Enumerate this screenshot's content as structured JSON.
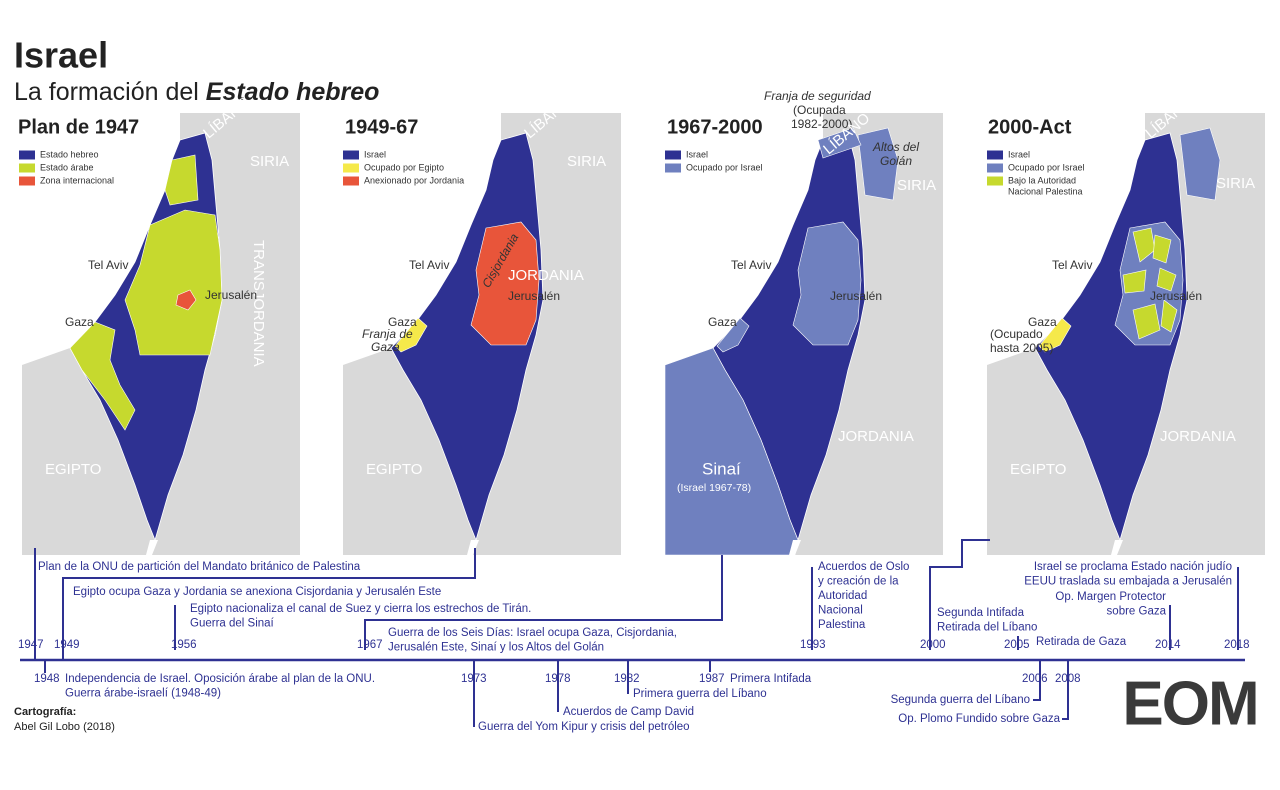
{
  "header": {
    "title": "Israel",
    "subtitle": "La formación del ",
    "subtitle_emphasis": "Estado hebreo"
  },
  "maps": [
    {
      "title": "Plan de 1947",
      "legend": [
        {
          "lines": [
            "Estado hebreo"
          ],
          "color": "#2e3192"
        },
        {
          "lines": [
            "Estado árabe"
          ],
          "color": "#c6d92e"
        },
        {
          "lines": [
            "Zona internacional"
          ],
          "color": "#e8553a"
        }
      ],
      "places": [
        "LÍBANO",
        "SIRIA",
        "TRANSJORDANIA",
        "Tel Aviv",
        "Jerusalén",
        "Gaza",
        "EGIPTO"
      ]
    },
    {
      "title": "1949-67",
      "legend": [
        {
          "lines": [
            "Israel"
          ],
          "color": "#2e3192"
        },
        {
          "lines": [
            "Ocupado por Egipto"
          ],
          "color": "#f5e94a"
        },
        {
          "lines": [
            "Anexionado por Jordania"
          ],
          "color": "#e8553a"
        }
      ],
      "places": [
        "LÍBANO",
        "SIRIA",
        "JORDANIA",
        "Cisjordania",
        "Tel Aviv",
        "Jerusalén",
        "Gaza",
        "Franja de",
        "Gaza",
        "EGIPTO"
      ]
    },
    {
      "title": "1967-2000",
      "legend": [
        {
          "lines": [
            "Israel"
          ],
          "color": "#2e3192"
        },
        {
          "lines": [
            "Ocupado por Israel"
          ],
          "color": "#6f80bf"
        }
      ],
      "places": [
        "Franja de seguridad",
        "(Ocupada",
        "1982-2000)",
        "LÍBANO",
        "Altos del",
        "Golán",
        "SIRIA",
        "Tel Aviv",
        "Jerusalén",
        "Gaza",
        "JORDANIA",
        "Sinaí",
        "(Israel 1967-78)"
      ]
    },
    {
      "title": "2000-Act",
      "legend": [
        {
          "lines": [
            "Israel"
          ],
          "color": "#2e3192"
        },
        {
          "lines": [
            "Ocupado por Israel"
          ],
          "color": "#6f80bf"
        },
        {
          "lines": [
            "Bajo la Autoridad",
            "Nacional Palestina"
          ],
          "color": "#c6d92e"
        }
      ],
      "places": [
        "LÍBANO",
        "SIRIA",
        "Tel Aviv",
        "Jerusalén",
        "Gaza",
        "(Ocupado",
        "hasta 2005)",
        "JORDANIA",
        "EGIPTO"
      ]
    }
  ],
  "timeline": {
    "years_above": [
      "1947",
      "1949",
      "1956",
      "1967",
      "1993",
      "2000",
      "2005",
      "2014",
      "2018"
    ],
    "years_below": [
      "1948",
      "1973",
      "1978",
      "1982",
      "1987",
      "2006",
      "2008"
    ],
    "events": [
      [
        "Plan de la ONU de partición del Mandato británico de Palestina"
      ],
      [
        "Egipto ocupa Gaza y Jordania se anexiona Cisjordania y Jerusalén Este"
      ],
      [
        "Egipto nacionaliza el canal de Suez y cierra los estrechos de Tirán.",
        "Guerra del Sinaí"
      ],
      [
        "Guerra de los Seis Días: Israel ocupa Gaza, Cisjordania,",
        "Jerusalén Este, Sinaí y los Altos del Golán"
      ],
      [
        "Acuerdos de Oslo",
        "y creación de la",
        "Autoridad",
        "Nacional",
        "Palestina"
      ],
      [
        "Segunda Intifada",
        "Retirada del Líbano"
      ],
      [
        "Retirada de Gaza"
      ],
      [
        "Op. Margen Protector",
        "sobre Gaza"
      ],
      [
        "Israel se proclama Estado nación judío",
        "EEUU traslada su embajada a Jerusalén"
      ],
      [
        "Independencia de Israel. Oposición árabe al plan de la ONU.",
        "Guerra árabe-israelí (1948-49)"
      ],
      [
        "Guerra del Yom Kipur y crisis del petróleo"
      ],
      [
        "Acuerdos de Camp David"
      ],
      [
        "Primera guerra del Líbano"
      ],
      [
        "Primera Intifada"
      ],
      [
        "Segunda guerra del Líbano"
      ],
      [
        "Op. Plomo Fundido sobre Gaza"
      ]
    ]
  },
  "credits": {
    "label": "Cartografía:",
    "author": "Abel Gil Lobo (2018)"
  },
  "logo": "EOM"
}
